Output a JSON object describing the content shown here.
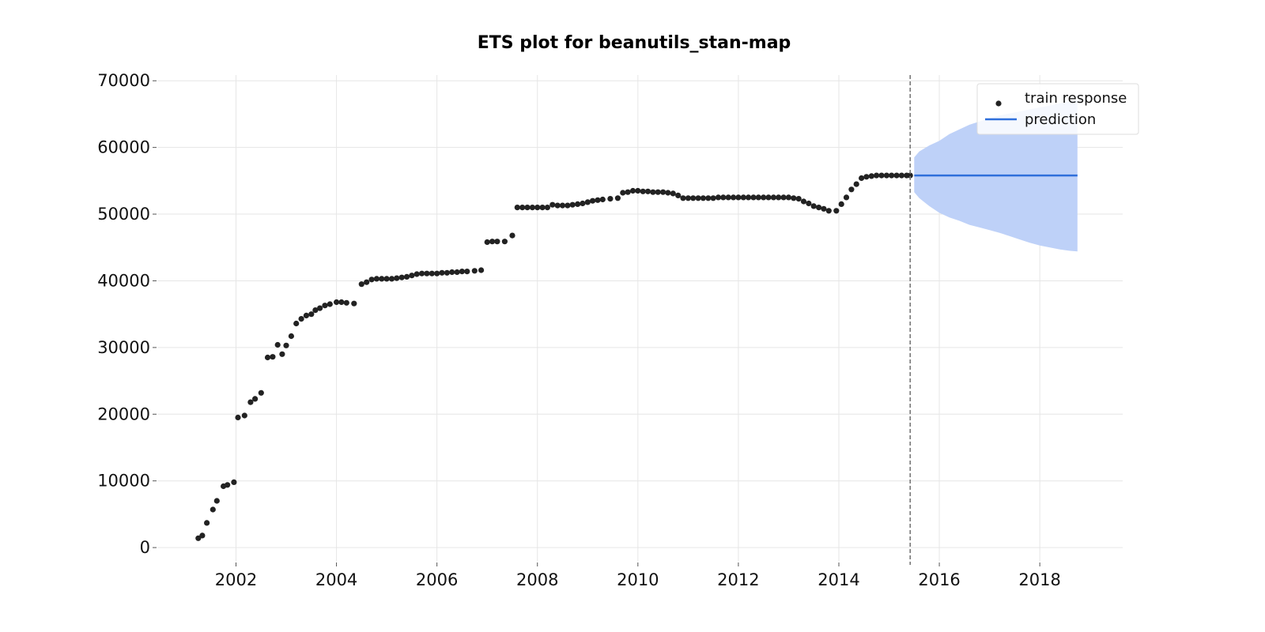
{
  "chart_data": {
    "type": "scatter",
    "title": "ETS plot for beanutils_stan-map",
    "xlabel": "",
    "ylabel": "",
    "xlim": [
      2000.45,
      2019.65
    ],
    "ylim": [
      -2000,
      70500
    ],
    "x_ticks": [
      "2002",
      "2004",
      "2006",
      "2008",
      "2010",
      "2012",
      "2014",
      "2016",
      "2018"
    ],
    "y_ticks": [
      "0",
      "10000",
      "20000",
      "30000",
      "40000",
      "50000",
      "60000",
      "70000"
    ],
    "grid": true,
    "legend": {
      "placement": "top-right",
      "entries": [
        {
          "label": "train response",
          "marker": "dot",
          "color": "#222222"
        },
        {
          "label": "prediction",
          "marker": "line",
          "color": "#2f6fdb"
        }
      ]
    },
    "forecast_start": 2015.42,
    "series": [
      {
        "name": "train response",
        "type": "scatter",
        "color": "#222222",
        "points": [
          [
            2001.25,
            1400
          ],
          [
            2001.33,
            1800
          ],
          [
            2001.42,
            3700
          ],
          [
            2001.54,
            5700
          ],
          [
            2001.62,
            7000
          ],
          [
            2001.75,
            9200
          ],
          [
            2001.83,
            9400
          ],
          [
            2001.96,
            9800
          ],
          [
            2002.04,
            19500
          ],
          [
            2002.17,
            19800
          ],
          [
            2002.29,
            21800
          ],
          [
            2002.38,
            22300
          ],
          [
            2002.5,
            23200
          ],
          [
            2002.63,
            28500
          ],
          [
            2002.73,
            28600
          ],
          [
            2002.83,
            30400
          ],
          [
            2002.92,
            29000
          ],
          [
            2003.0,
            30300
          ],
          [
            2003.1,
            31700
          ],
          [
            2003.2,
            33600
          ],
          [
            2003.3,
            34300
          ],
          [
            2003.4,
            34800
          ],
          [
            2003.5,
            35000
          ],
          [
            2003.58,
            35600
          ],
          [
            2003.67,
            35900
          ],
          [
            2003.77,
            36300
          ],
          [
            2003.87,
            36500
          ],
          [
            2004.0,
            36800
          ],
          [
            2004.1,
            36800
          ],
          [
            2004.2,
            36700
          ],
          [
            2004.35,
            36600
          ],
          [
            2004.5,
            39500
          ],
          [
            2004.6,
            39800
          ],
          [
            2004.7,
            40200
          ],
          [
            2004.8,
            40300
          ],
          [
            2004.9,
            40300
          ],
          [
            2005.0,
            40300
          ],
          [
            2005.1,
            40300
          ],
          [
            2005.2,
            40400
          ],
          [
            2005.3,
            40500
          ],
          [
            2005.4,
            40600
          ],
          [
            2005.5,
            40800
          ],
          [
            2005.6,
            41000
          ],
          [
            2005.7,
            41100
          ],
          [
            2005.8,
            41100
          ],
          [
            2005.9,
            41100
          ],
          [
            2006.0,
            41100
          ],
          [
            2006.1,
            41200
          ],
          [
            2006.2,
            41200
          ],
          [
            2006.3,
            41300
          ],
          [
            2006.4,
            41300
          ],
          [
            2006.5,
            41400
          ],
          [
            2006.6,
            41400
          ],
          [
            2006.75,
            41500
          ],
          [
            2006.88,
            41600
          ],
          [
            2007.0,
            45800
          ],
          [
            2007.1,
            45900
          ],
          [
            2007.2,
            45900
          ],
          [
            2007.35,
            45900
          ],
          [
            2007.5,
            46800
          ],
          [
            2007.6,
            51000
          ],
          [
            2007.7,
            51000
          ],
          [
            2007.8,
            51000
          ],
          [
            2007.9,
            51000
          ],
          [
            2008.0,
            51000
          ],
          [
            2008.1,
            51000
          ],
          [
            2008.2,
            51000
          ],
          [
            2008.3,
            51400
          ],
          [
            2008.4,
            51300
          ],
          [
            2008.5,
            51300
          ],
          [
            2008.6,
            51300
          ],
          [
            2008.7,
            51400
          ],
          [
            2008.8,
            51500
          ],
          [
            2008.9,
            51600
          ],
          [
            2009.0,
            51800
          ],
          [
            2009.1,
            52000
          ],
          [
            2009.2,
            52100
          ],
          [
            2009.3,
            52200
          ],
          [
            2009.45,
            52300
          ],
          [
            2009.6,
            52400
          ],
          [
            2009.7,
            53200
          ],
          [
            2009.8,
            53300
          ],
          [
            2009.9,
            53500
          ],
          [
            2010.0,
            53500
          ],
          [
            2010.1,
            53400
          ],
          [
            2010.2,
            53400
          ],
          [
            2010.3,
            53300
          ],
          [
            2010.4,
            53300
          ],
          [
            2010.5,
            53300
          ],
          [
            2010.6,
            53200
          ],
          [
            2010.7,
            53100
          ],
          [
            2010.8,
            52800
          ],
          [
            2010.9,
            52400
          ],
          [
            2011.0,
            52400
          ],
          [
            2011.1,
            52400
          ],
          [
            2011.2,
            52400
          ],
          [
            2011.3,
            52400
          ],
          [
            2011.4,
            52400
          ],
          [
            2011.5,
            52400
          ],
          [
            2011.6,
            52500
          ],
          [
            2011.7,
            52500
          ],
          [
            2011.8,
            52500
          ],
          [
            2011.9,
            52500
          ],
          [
            2012.0,
            52500
          ],
          [
            2012.1,
            52500
          ],
          [
            2012.2,
            52500
          ],
          [
            2012.3,
            52500
          ],
          [
            2012.4,
            52500
          ],
          [
            2012.5,
            52500
          ],
          [
            2012.6,
            52500
          ],
          [
            2012.7,
            52500
          ],
          [
            2012.8,
            52500
          ],
          [
            2012.9,
            52500
          ],
          [
            2013.0,
            52500
          ],
          [
            2013.1,
            52400
          ],
          [
            2013.2,
            52300
          ],
          [
            2013.3,
            51900
          ],
          [
            2013.4,
            51600
          ],
          [
            2013.5,
            51200
          ],
          [
            2013.6,
            51000
          ],
          [
            2013.7,
            50800
          ],
          [
            2013.8,
            50500
          ],
          [
            2013.95,
            50500
          ],
          [
            2014.05,
            51500
          ],
          [
            2014.15,
            52500
          ],
          [
            2014.25,
            53700
          ],
          [
            2014.35,
            54500
          ],
          [
            2014.45,
            55400
          ],
          [
            2014.55,
            55600
          ],
          [
            2014.65,
            55700
          ],
          [
            2014.75,
            55800
          ],
          [
            2014.85,
            55800
          ],
          [
            2014.95,
            55800
          ],
          [
            2015.05,
            55800
          ],
          [
            2015.15,
            55800
          ],
          [
            2015.25,
            55800
          ],
          [
            2015.35,
            55800
          ],
          [
            2015.42,
            55800
          ]
        ]
      },
      {
        "name": "prediction",
        "type": "line",
        "color": "#2f6fdb",
        "x": [
          2015.5,
          2018.75
        ],
        "y": [
          55800,
          55800
        ],
        "interval": {
          "color": "#bed1f8",
          "x": [
            2015.5,
            2015.6,
            2015.8,
            2016.0,
            2016.2,
            2016.4,
            2016.6,
            2016.8,
            2017.0,
            2017.2,
            2017.4,
            2017.6,
            2017.8,
            2018.0,
            2018.2,
            2018.4,
            2018.6,
            2018.75
          ],
          "lower": [
            53300,
            52400,
            51200,
            50200,
            49500,
            49000,
            48400,
            48000,
            47600,
            47200,
            46700,
            46200,
            45700,
            45300,
            45000,
            44700,
            44500,
            44400
          ],
          "upper": [
            58500,
            59400,
            60300,
            61000,
            62000,
            62700,
            63400,
            63900,
            64400,
            64800,
            65100,
            65400,
            65700,
            66000,
            66300,
            66600,
            66900,
            67100
          ]
        }
      }
    ]
  }
}
